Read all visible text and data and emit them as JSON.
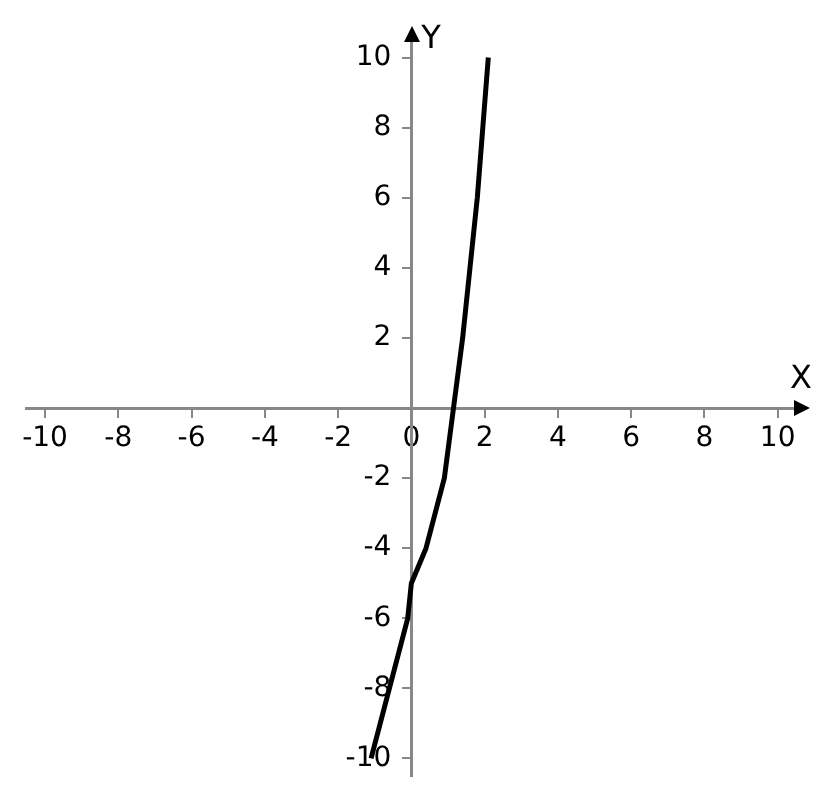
{
  "chart_data": {
    "type": "line",
    "xlabel": "X",
    "ylabel": "Y",
    "x": [
      -1.1,
      -0.6,
      -0.1,
      0,
      0.4,
      0.9,
      1.15,
      1.4,
      1.6,
      1.8,
      1.95,
      2.1
    ],
    "series": [
      {
        "color": "#000000",
        "values": [
          -10,
          -8,
          -6,
          -5,
          -4,
          -2,
          0,
          2,
          4,
          6,
          8,
          10
        ]
      }
    ],
    "xlim": [
      -10.5,
      10.5
    ],
    "ylim": [
      -10.5,
      10.5
    ],
    "xticks": [
      -10,
      -8,
      -6,
      -4,
      -2,
      0,
      2,
      4,
      6,
      8,
      10
    ],
    "yticks": [
      -10,
      -8,
      -6,
      -4,
      -2,
      2,
      4,
      6,
      8,
      10
    ],
    "grid": false,
    "legend": false,
    "marker": "none",
    "line_style": "solid"
  }
}
